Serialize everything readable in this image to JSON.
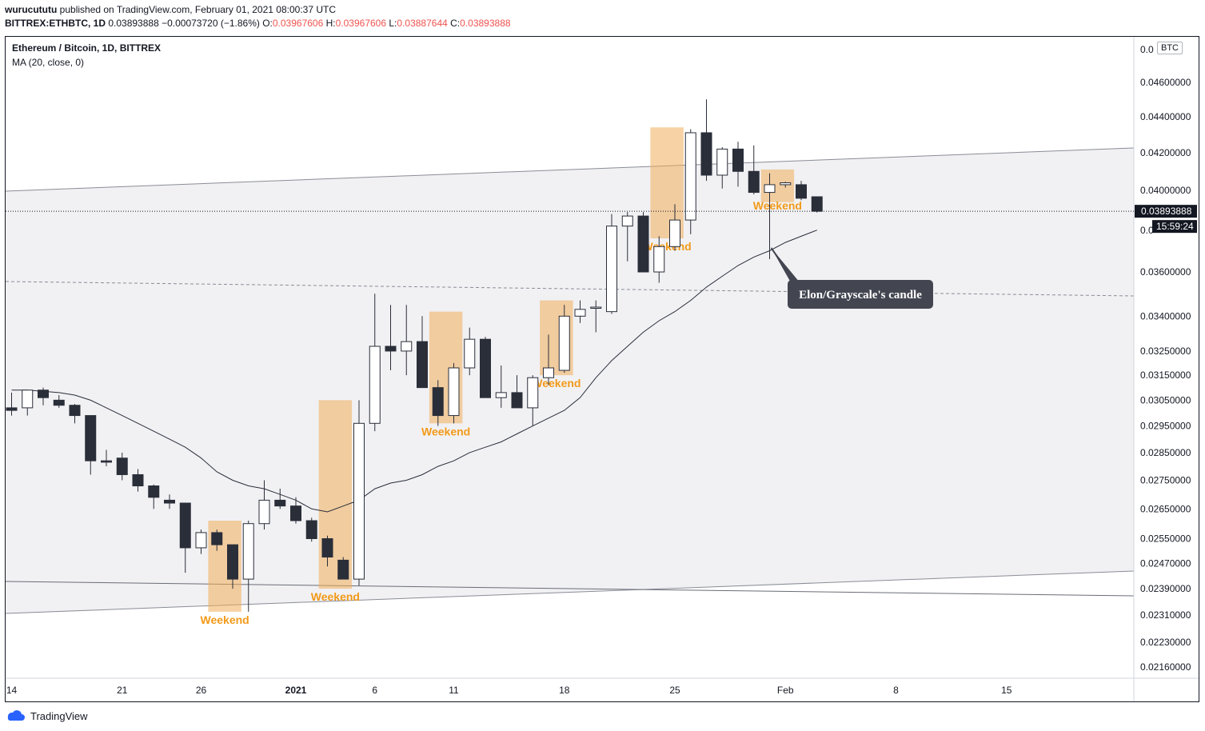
{
  "header": {
    "publisher": "wurucututu",
    "published_text": "published on TradingView.com, February 01, 2021 08:00:37 UTC",
    "symbol": "BITTREX:ETHBTC, 1D",
    "last": "0.03893888",
    "change": "−0.00073720 (−1.86%)",
    "open_label": "O:",
    "open": "0.03967606",
    "high_label": "H:",
    "high": "0.03967606",
    "low_label": "L:",
    "low": "0.03887644",
    "close_label": "C:",
    "close": "0.03893888"
  },
  "legend": {
    "title": "Ethereum / Bitcoin, 1D, BITTREX",
    "indicator": "MA (20, close, 0)"
  },
  "price_axis": {
    "currency": "BTC",
    "last_price": "0.03893888",
    "countdown": "15:59:24",
    "last_price_color": "#131722"
  },
  "footer": {
    "brand": "TradingView"
  },
  "annotations": {
    "weekend_label": "Weekend",
    "callout": "Elon/Grayscale's candle",
    "weekend_color": "#f0ad5a",
    "weekend_text_color": "#f29a1a"
  },
  "chart_data": {
    "type": "candlestick",
    "title": "Ethereum / Bitcoin, 1D, BITTREX",
    "yscale": "log",
    "ylim": [
      0.0212,
      0.0475
    ],
    "y_ticks": [
      "0.04600000",
      "0.04400000",
      "0.04200000",
      "0.04000000",
      "0.03600000",
      "0.03400000",
      "0.03250000",
      "0.03150000",
      "0.03050000",
      "0.02950000",
      "0.02850000",
      "0.02750000",
      "0.02650000",
      "0.02550000",
      "0.02470000",
      "0.02390000",
      "0.02310000",
      "0.02230000",
      "0.02160000"
    ],
    "x_ticks": [
      {
        "label": "14",
        "day": 0
      },
      {
        "label": "21",
        "day": 7
      },
      {
        "label": "26",
        "day": 12
      },
      {
        "label": "2021",
        "day": 18,
        "bold": true
      },
      {
        "label": "6",
        "day": 23
      },
      {
        "label": "11",
        "day": 28
      },
      {
        "label": "18",
        "day": 35
      },
      {
        "label": "25",
        "day": 42
      },
      {
        "label": "Feb",
        "day": 49
      },
      {
        "label": "8",
        "day": 56
      },
      {
        "label": "15",
        "day": 63
      }
    ],
    "candles": [
      {
        "d": "2020-12-13",
        "o": 0.0302,
        "h": 0.0308,
        "l": 0.0299,
        "c": 0.0301
      },
      {
        "d": "2020-12-14",
        "o": 0.0302,
        "h": 0.0309,
        "l": 0.0299,
        "c": 0.0309
      },
      {
        "d": "2020-12-15",
        "o": 0.0309,
        "h": 0.031,
        "l": 0.0303,
        "c": 0.0306
      },
      {
        "d": "2020-12-16",
        "o": 0.0305,
        "h": 0.0307,
        "l": 0.0302,
        "c": 0.0303
      },
      {
        "d": "2020-12-17",
        "o": 0.0303,
        "h": 0.03035,
        "l": 0.0296,
        "c": 0.0299
      },
      {
        "d": "2020-12-18",
        "o": 0.0299,
        "h": 0.0299,
        "l": 0.0277,
        "c": 0.0282
      },
      {
        "d": "2020-12-19",
        "o": 0.0282,
        "h": 0.0286,
        "l": 0.028,
        "c": 0.02815
      },
      {
        "d": "2020-12-20",
        "o": 0.0283,
        "h": 0.0285,
        "l": 0.0275,
        "c": 0.0277
      },
      {
        "d": "2020-12-21",
        "o": 0.0277,
        "h": 0.0279,
        "l": 0.0271,
        "c": 0.0273
      },
      {
        "d": "2020-12-22",
        "o": 0.0273,
        "h": 0.02735,
        "l": 0.0265,
        "c": 0.0269
      },
      {
        "d": "2020-12-23",
        "o": 0.0268,
        "h": 0.027,
        "l": 0.0265,
        "c": 0.0267
      },
      {
        "d": "2020-12-24",
        "o": 0.0267,
        "h": 0.0267,
        "l": 0.0244,
        "c": 0.0252
      },
      {
        "d": "2020-12-25",
        "o": 0.0252,
        "h": 0.0258,
        "l": 0.025,
        "c": 0.0257
      },
      {
        "d": "2020-12-26",
        "o": 0.0257,
        "h": 0.0258,
        "l": 0.0251,
        "c": 0.0253
      },
      {
        "d": "2020-12-27",
        "o": 0.0253,
        "h": 0.0253,
        "l": 0.0239,
        "c": 0.0242
      },
      {
        "d": "2020-12-28",
        "o": 0.0242,
        "h": 0.0261,
        "l": 0.0232,
        "c": 0.026
      },
      {
        "d": "2020-12-29",
        "o": 0.026,
        "h": 0.0275,
        "l": 0.0258,
        "c": 0.0268
      },
      {
        "d": "2020-12-30",
        "o": 0.0268,
        "h": 0.0272,
        "l": 0.0265,
        "c": 0.0266
      },
      {
        "d": "2020-12-31",
        "o": 0.0266,
        "h": 0.0269,
        "l": 0.026,
        "c": 0.0261
      },
      {
        "d": "2021-01-01",
        "o": 0.0261,
        "h": 0.0262,
        "l": 0.0254,
        "c": 0.0255
      },
      {
        "d": "2021-01-02",
        "o": 0.0255,
        "h": 0.0256,
        "l": 0.0246,
        "c": 0.0249
      },
      {
        "d": "2021-01-03",
        "o": 0.0248,
        "h": 0.0249,
        "l": 0.0242,
        "c": 0.0242
      },
      {
        "d": "2021-01-04",
        "o": 0.0242,
        "h": 0.0305,
        "l": 0.024,
        "c": 0.0296
      },
      {
        "d": "2021-01-05",
        "o": 0.0296,
        "h": 0.035,
        "l": 0.0293,
        "c": 0.0327
      },
      {
        "d": "2021-01-06",
        "o": 0.0327,
        "h": 0.0345,
        "l": 0.0317,
        "c": 0.0325
      },
      {
        "d": "2021-01-07",
        "o": 0.0325,
        "h": 0.0345,
        "l": 0.0315,
        "c": 0.0329
      },
      {
        "d": "2021-01-08",
        "o": 0.0329,
        "h": 0.034,
        "l": 0.031,
        "c": 0.031
      },
      {
        "d": "2021-01-09",
        "o": 0.031,
        "h": 0.0313,
        "l": 0.0295,
        "c": 0.0299
      },
      {
        "d": "2021-01-10",
        "o": 0.0299,
        "h": 0.032,
        "l": 0.0296,
        "c": 0.0318
      },
      {
        "d": "2021-01-11",
        "o": 0.0318,
        "h": 0.0335,
        "l": 0.0315,
        "c": 0.033
      },
      {
        "d": "2021-01-12",
        "o": 0.033,
        "h": 0.0331,
        "l": 0.0306,
        "c": 0.0306
      },
      {
        "d": "2021-01-13",
        "o": 0.0306,
        "h": 0.0319,
        "l": 0.0302,
        "c": 0.0308
      },
      {
        "d": "2021-01-14",
        "o": 0.0308,
        "h": 0.0315,
        "l": 0.0302,
        "c": 0.0302
      },
      {
        "d": "2021-01-15",
        "o": 0.0302,
        "h": 0.0315,
        "l": 0.0295,
        "c": 0.0314
      },
      {
        "d": "2021-01-16",
        "o": 0.0314,
        "h": 0.0332,
        "l": 0.0311,
        "c": 0.0318
      },
      {
        "d": "2021-01-17",
        "o": 0.0317,
        "h": 0.0345,
        "l": 0.0316,
        "c": 0.034
      },
      {
        "d": "2021-01-18",
        "o": 0.034,
        "h": 0.0347,
        "l": 0.0337,
        "c": 0.0343
      },
      {
        "d": "2021-01-19",
        "o": 0.0344,
        "h": 0.0347,
        "l": 0.0333,
        "c": 0.0344
      },
      {
        "d": "2021-01-20",
        "o": 0.0342,
        "h": 0.0388,
        "l": 0.0341,
        "c": 0.0382
      },
      {
        "d": "2021-01-21",
        "o": 0.0382,
        "h": 0.0389,
        "l": 0.0365,
        "c": 0.0387
      },
      {
        "d": "2021-01-22",
        "o": 0.0387,
        "h": 0.0389,
        "l": 0.036,
        "c": 0.036
      },
      {
        "d": "2021-01-23",
        "o": 0.036,
        "h": 0.0377,
        "l": 0.0355,
        "c": 0.0372
      },
      {
        "d": "2021-01-24",
        "o": 0.0372,
        "h": 0.0393,
        "l": 0.037,
        "c": 0.0385
      },
      {
        "d": "2021-01-25",
        "o": 0.0385,
        "h": 0.0433,
        "l": 0.0378,
        "c": 0.0431
      },
      {
        "d": "2021-01-26",
        "o": 0.0431,
        "h": 0.045,
        "l": 0.0405,
        "c": 0.0408
      },
      {
        "d": "2021-01-27",
        "o": 0.0408,
        "h": 0.0423,
        "l": 0.0401,
        "c": 0.0422
      },
      {
        "d": "2021-01-28",
        "o": 0.0422,
        "h": 0.0426,
        "l": 0.0402,
        "c": 0.041
      },
      {
        "d": "2021-01-29",
        "o": 0.041,
        "h": 0.0424,
        "l": 0.0398,
        "c": 0.0399
      },
      {
        "d": "2021-01-30",
        "o": 0.0399,
        "h": 0.0409,
        "l": 0.0366,
        "c": 0.0403
      },
      {
        "d": "2021-01-31",
        "o": 0.0403,
        "h": 0.04045,
        "l": 0.04015,
        "c": 0.0404
      },
      {
        "d": "2021-02-01",
        "o": 0.0403,
        "h": 0.0405,
        "l": 0.0395,
        "c": 0.0396
      },
      {
        "d": "2021-02-02",
        "o": 0.03967606,
        "h": 0.03967606,
        "l": 0.03887644,
        "c": 0.03893888
      }
    ],
    "ma20": [
      0.0309,
      0.0309,
      0.03085,
      0.0308,
      0.0307,
      0.0305,
      0.0302,
      0.0299,
      0.0296,
      0.0293,
      0.029,
      0.0287,
      0.0283,
      0.0278,
      0.0275,
      0.0273,
      0.0272,
      0.027,
      0.0268,
      0.0265,
      0.0264,
      0.0266,
      0.0268,
      0.0272,
      0.0274,
      0.0275,
      0.0277,
      0.028,
      0.0282,
      0.0285,
      0.0287,
      0.0289,
      0.0292,
      0.0295,
      0.0298,
      0.0301,
      0.0306,
      0.0314,
      0.0321,
      0.0327,
      0.0333,
      0.0338,
      0.0342,
      0.0347,
      0.0353,
      0.0358,
      0.0363,
      0.0367,
      0.037,
      0.0374,
      0.0377,
      0.038
    ],
    "weekend_boxes": [
      {
        "start": "2020-12-26",
        "end": "2020-12-27",
        "top": 0.0261,
        "bottom": 0.0232,
        "label_below": true
      },
      {
        "start": "2021-01-02",
        "end": "2021-01-03",
        "top": 0.0305,
        "bottom": 0.0239,
        "label_below": true
      },
      {
        "start": "2021-01-09",
        "end": "2021-01-10",
        "top": 0.0342,
        "bottom": 0.0296,
        "label_below": true
      },
      {
        "start": "2021-01-16",
        "end": "2021-01-17",
        "top": 0.0347,
        "bottom": 0.0315,
        "label_below": true
      },
      {
        "start": "2021-01-23",
        "end": "2021-01-24",
        "top": 0.0434,
        "bottom": 0.0376,
        "label_below": true
      },
      {
        "start": "2021-01-30",
        "end": "2021-01-31",
        "top": 0.0411,
        "bottom": 0.0394,
        "label_below": false
      }
    ]
  }
}
